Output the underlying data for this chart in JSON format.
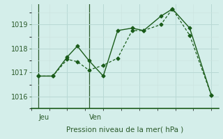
{
  "title": "",
  "xlabel": "Pression niveau de la mer( hPa )",
  "background_color": "#d4eeea",
  "plot_bg_color": "#d4eeea",
  "line_color": "#1a5c1a",
  "grid_color_major": "#b8d8d4",
  "grid_color_minor": "#cce4e0",
  "tick_label_color": "#2a5a2a",
  "day_label_color": "#2a5a2a",
  "yticks": [
    1016,
    1017,
    1018,
    1019
  ],
  "ylim": [
    1015.5,
    1019.85
  ],
  "xlim": [
    0,
    13
  ],
  "series1_x": [
    0.5,
    1.5,
    2.5,
    3.2,
    4.0,
    5.0,
    6.0,
    7.0,
    7.8,
    9.0,
    9.8,
    11.0,
    12.5
  ],
  "series1_y": [
    1016.85,
    1016.85,
    1017.65,
    1018.1,
    1017.5,
    1016.85,
    1018.75,
    1018.85,
    1018.75,
    1019.35,
    1019.65,
    1018.85,
    1016.05
  ],
  "series2_x": [
    0.5,
    1.5,
    2.5,
    3.2,
    4.0,
    5.0,
    6.0,
    7.0,
    7.8,
    9.0,
    9.8,
    11.0,
    12.5
  ],
  "series2_y": [
    1016.85,
    1016.85,
    1017.55,
    1017.45,
    1017.1,
    1017.3,
    1017.6,
    1018.75,
    1018.75,
    1019.0,
    1019.65,
    1018.55,
    1016.05
  ],
  "jeu_vline_x": 0.5,
  "ven_vline_x": 4.0,
  "jeu_label": "Jeu",
  "ven_label": "Ven",
  "xlabel_fontsize": 7.5,
  "tick_fontsize": 7
}
